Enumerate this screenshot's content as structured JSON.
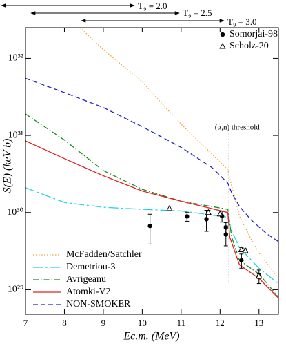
{
  "chart_data": {
    "type": "line",
    "x_label": "Ec.m. (MeV)",
    "y_label": "S(E) (keV b)",
    "xlim": [
      7,
      13.5
    ],
    "xticks": [
      7,
      8,
      9,
      10,
      11,
      12,
      13
    ],
    "ylim": [
      4.8e+28,
      2.5e+32
    ],
    "log_y": true,
    "yticks": [
      {
        "value": 1e+29,
        "label": "10²⁹"
      },
      {
        "value": 1e+30,
        "label": "10³⁰"
      },
      {
        "value": 1e+31,
        "label": "10³¹"
      },
      {
        "value": 1e+32,
        "label": "10³²"
      }
    ],
    "annotations": [
      "T₉ = 2.0",
      "T₉ = 2.5",
      "T₉ = 3.0"
    ],
    "threshold_label": "(α,n) threshold",
    "threshold_x": 12.23,
    "legend": "lower left",
    "series": [
      {
        "name": "McFadden/Satchler",
        "color": "#f5a030",
        "dash": "dotted",
        "x": [
          8.4,
          9,
          9.5,
          10,
          10.5,
          11,
          11.5,
          12,
          12.2,
          12.3,
          12.5,
          12.8,
          13,
          13.5
        ],
        "values": [
          2.5e+32,
          1.3e+32,
          8e+31,
          5e+31,
          2.6e+31,
          1.4e+31,
          8e+30,
          4.5e+30,
          3.6e+30,
          2.2e+30,
          9e+29,
          4.5e+29,
          3e+29,
          1.4e+29
        ]
      },
      {
        "name": "Demetriou-3",
        "color": "#22d3e0",
        "dash": "longdash",
        "x": [
          7,
          8,
          9,
          10,
          11,
          12.2,
          12.3,
          12.5,
          13,
          13.5
        ],
        "values": [
          2.1e+30,
          1.35e+30,
          1.17e+30,
          1.1e+30,
          1.05e+30,
          8.7e+29,
          5.8e+29,
          3.5e+29,
          1.9e+29,
          1.2e+29
        ]
      },
      {
        "name": "Avrigeanu",
        "color": "#1a8a1a",
        "dash": "dashdot",
        "x": [
          7,
          8,
          9,
          10,
          11,
          12.2,
          12.3,
          12.5,
          13,
          13.5
        ],
        "values": [
          1.9e+31,
          8.7e+30,
          3.5e+30,
          2e+30,
          1.4e+30,
          1.1e+30,
          4.8e+29,
          2.4e+29,
          1.6e+29,
          8e+28
        ]
      },
      {
        "name": "Atomki-V2",
        "color": "#e02020",
        "dash": "solid",
        "x": [
          7,
          8,
          9,
          10,
          11,
          12.2,
          12.25,
          12.5,
          13,
          13.5
        ],
        "values": [
          8.5e+30,
          5e+30,
          3e+30,
          1.9e+30,
          1.4e+30,
          1e+30,
          4.8e+29,
          2.1e+29,
          1.4e+29,
          7.8e+28
        ]
      },
      {
        "name": "NON-SMOKER",
        "color": "#2020d0",
        "dash": "dashed",
        "x": [
          7,
          8,
          9,
          10,
          11,
          11.8,
          12.2,
          12.3,
          12.5,
          12.8,
          13,
          13.2,
          13.5
        ],
        "values": [
          5.5e+31,
          3.6e+31,
          2.3e+31,
          1.3e+31,
          7e+30,
          3.8e+30,
          2.4e+30,
          1.8e+30,
          1.2e+30,
          8e+29,
          6.5e+29,
          5.3e+29,
          4.2e+29
        ]
      }
    ],
    "scatter_series": [
      {
        "name": "Somorjai-98",
        "color": "#000000",
        "marker": "filled-circle",
        "x": [
          10.2,
          11.15,
          11.65,
          12.05,
          12.15,
          12.15,
          12.55,
          13.0
        ],
        "values": [
          6.7e+29,
          8.9e+29,
          8.2e+29,
          9e+29,
          6.4e+29,
          5.2e+29,
          2.4e+29,
          1.5e+29
        ],
        "errors": [
          2.8e+29,
          1.2e+29,
          2.5e+29,
          1.5e+29,
          1e+29,
          1.5e+29,
          5e+28,
          3e+28
        ]
      },
      {
        "name": "Scholz-20",
        "color": "#000000",
        "marker": "open-triangle",
        "x": [
          10.7,
          11.7,
          12.0,
          12.55,
          12.65,
          13.0
        ],
        "values": [
          1.13e+30,
          1e+30,
          9.6e+29,
          3.3e+29,
          3.2e+29,
          1.5e+29
        ],
        "errors": [
          8e+28,
          7e+28,
          7e+27,
          2e+28,
          2e+28,
          1e+28
        ]
      }
    ]
  }
}
